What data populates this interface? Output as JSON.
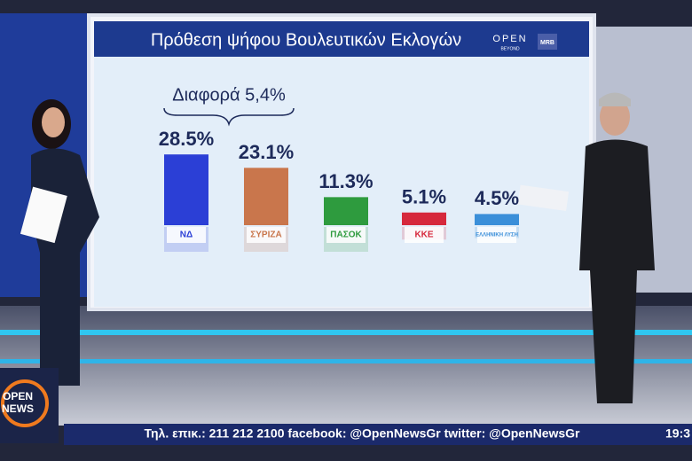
{
  "chart_data": {
    "type": "bar",
    "title": "Πρόθεση ψήφου Βουλευτικών Εκλογών",
    "categories": [
      "ΝΔ",
      "ΣΥΡΙΖΑ",
      "ΠΑΣΟΚ",
      "ΚΚΕ",
      "ΕΛΛΗΝΙΚΗ ΛΥΣΗ"
    ],
    "values": [
      28.5,
      23.1,
      11.3,
      5.1,
      4.5
    ],
    "value_labels": [
      "28.5%",
      "23.1%",
      "11.3%",
      "5.1%",
      "4.5%"
    ],
    "colors": [
      "#2b3fd6",
      "#c9764c",
      "#2e9b3e",
      "#d6283c",
      "#3b8fd9"
    ],
    "annotation": "Διαφορά 5,4%",
    "brand": "OPEN",
    "brand_sub": "BEYOND",
    "pollster": "MRB"
  },
  "ticker": {
    "text": "Τηλ. επικ.: 211 212 2100 facebook: @OpenNewsGr twitter: @OpenNewsGr",
    "clock": "19:3"
  },
  "channel_logo": {
    "line1": "OPEN",
    "line2": "NEWS"
  }
}
